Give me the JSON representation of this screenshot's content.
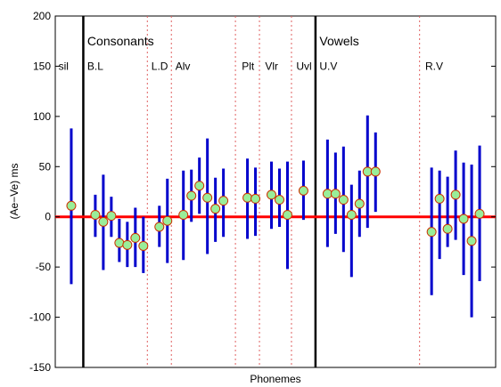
{
  "chart_data": {
    "type": "error-bar",
    "xlabel": "Phonemes",
    "ylabel": "(Ae−Ve) ms",
    "ylim": [
      -150,
      200
    ],
    "yticks": [
      -150,
      -100,
      -50,
      0,
      50,
      100,
      150,
      200
    ],
    "zero_line_color": "#ff0000",
    "errorbar_color": "#0000cc",
    "marker_color": "#99ee99",
    "marker_edge_color": "#cc3300",
    "major_dividers": [
      3.5,
      32.5
    ],
    "minor_dividers": [
      11.5,
      14.5,
      22.5,
      25.5,
      29.5,
      45.5
    ],
    "section_labels": [
      {
        "text": "Consonants",
        "x": 4.0
      },
      {
        "text": "Vowels",
        "x": 33.0
      }
    ],
    "group_labels": [
      {
        "text": "sil",
        "x": 0.4
      },
      {
        "text": "B.L",
        "x": 4.0
      },
      {
        "text": "L.D",
        "x": 12.0
      },
      {
        "text": "Alv",
        "x": 15.0
      },
      {
        "text": "Plt",
        "x": 23.3
      },
      {
        "text": "Vlr",
        "x": 26.2
      },
      {
        "text": "Uvl",
        "x": 30.1
      },
      {
        "text": "U.V",
        "x": 33.0
      },
      {
        "text": "R.V",
        "x": 46.2
      }
    ],
    "points": [
      {
        "x": 2,
        "mean": 11,
        "low": -67,
        "high": 88
      },
      {
        "x": 5,
        "mean": 2,
        "low": -20,
        "high": 22
      },
      {
        "x": 6,
        "mean": -5,
        "low": -53,
        "high": 42
      },
      {
        "x": 7,
        "mean": 1,
        "low": -20,
        "high": 20
      },
      {
        "x": 8,
        "mean": -26,
        "low": -45,
        "high": -2
      },
      {
        "x": 9,
        "mean": -28,
        "low": -50,
        "high": -5
      },
      {
        "x": 10,
        "mean": -21,
        "low": -50,
        "high": 9
      },
      {
        "x": 11,
        "mean": -29,
        "low": -56,
        "high": 0
      },
      {
        "x": 13,
        "mean": -10,
        "low": -30,
        "high": 11
      },
      {
        "x": 14,
        "mean": -4,
        "low": -46,
        "high": 38
      },
      {
        "x": 16,
        "mean": 2,
        "low": -43,
        "high": 46
      },
      {
        "x": 17,
        "mean": 21,
        "low": -5,
        "high": 47
      },
      {
        "x": 18,
        "mean": 31,
        "low": 3,
        "high": 59
      },
      {
        "x": 19,
        "mean": 19,
        "low": -37,
        "high": 78
      },
      {
        "x": 20,
        "mean": 8,
        "low": -25,
        "high": 39
      },
      {
        "x": 21,
        "mean": 16,
        "low": -20,
        "high": 48
      },
      {
        "x": 24,
        "mean": 19,
        "low": -22,
        "high": 58
      },
      {
        "x": 25,
        "mean": 18,
        "low": -19,
        "high": 49
      },
      {
        "x": 27,
        "mean": 22,
        "low": -12,
        "high": 55
      },
      {
        "x": 28,
        "mean": 17,
        "low": -10,
        "high": 48
      },
      {
        "x": 29,
        "mean": 2,
        "low": -52,
        "high": 55
      },
      {
        "x": 31,
        "mean": 26,
        "low": -3,
        "high": 56
      },
      {
        "x": 34,
        "mean": 23,
        "low": -30,
        "high": 77
      },
      {
        "x": 35,
        "mean": 23,
        "low": -17,
        "high": 64
      },
      {
        "x": 36,
        "mean": 17,
        "low": -35,
        "high": 70
      },
      {
        "x": 37,
        "mean": 2,
        "low": -60,
        "high": 32
      },
      {
        "x": 38,
        "mean": 13,
        "low": -20,
        "high": 46
      },
      {
        "x": 39,
        "mean": 45,
        "low": -11,
        "high": 101
      },
      {
        "x": 40,
        "mean": 45,
        "low": 5,
        "high": 84
      },
      {
        "x": 47,
        "mean": -15,
        "low": -78,
        "high": 49
      },
      {
        "x": 48,
        "mean": 18,
        "low": -42,
        "high": 46
      },
      {
        "x": 49,
        "mean": -12,
        "low": -30,
        "high": 40
      },
      {
        "x": 50,
        "mean": 22,
        "low": -23,
        "high": 66
      },
      {
        "x": 51,
        "mean": -2,
        "low": -58,
        "high": 54
      },
      {
        "x": 52,
        "mean": -24,
        "low": -100,
        "high": 52
      },
      {
        "x": 53,
        "mean": 3,
        "low": -64,
        "high": 71
      }
    ]
  }
}
